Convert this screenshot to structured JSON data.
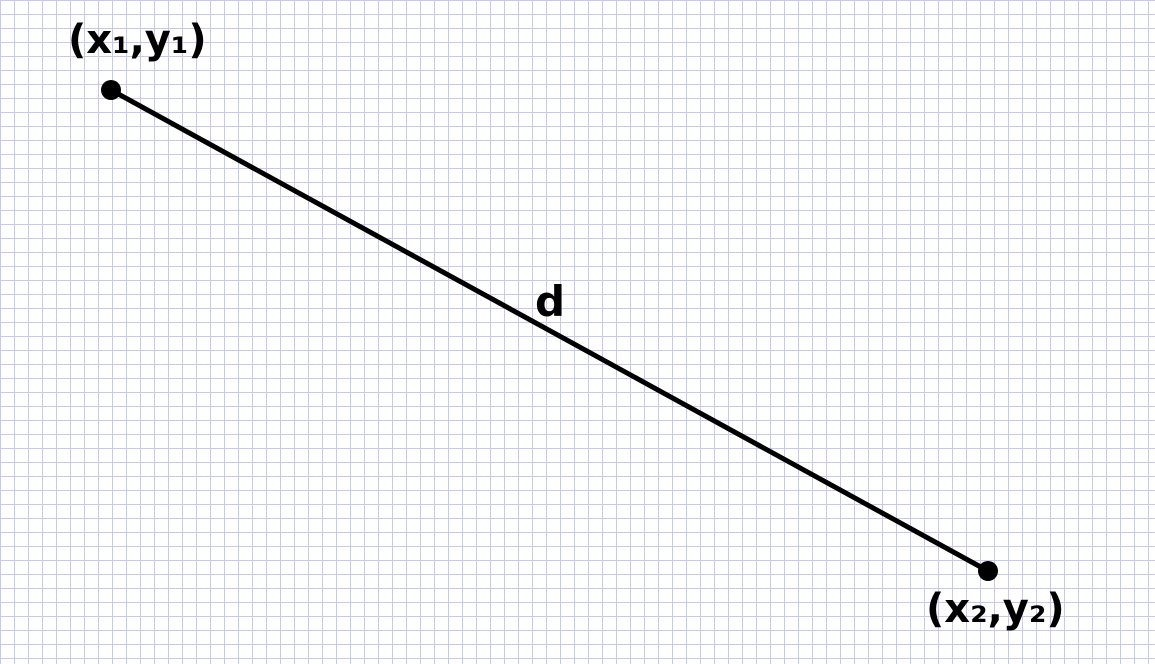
{
  "diagram": {
    "point1_label": "(x₁,y₁)",
    "point2_label": "(x₂,y₂)",
    "segment_label": "d"
  },
  "colors": {
    "grid_line": "#c8c8ee",
    "ink": "#000000",
    "background": "#ffffff"
  }
}
